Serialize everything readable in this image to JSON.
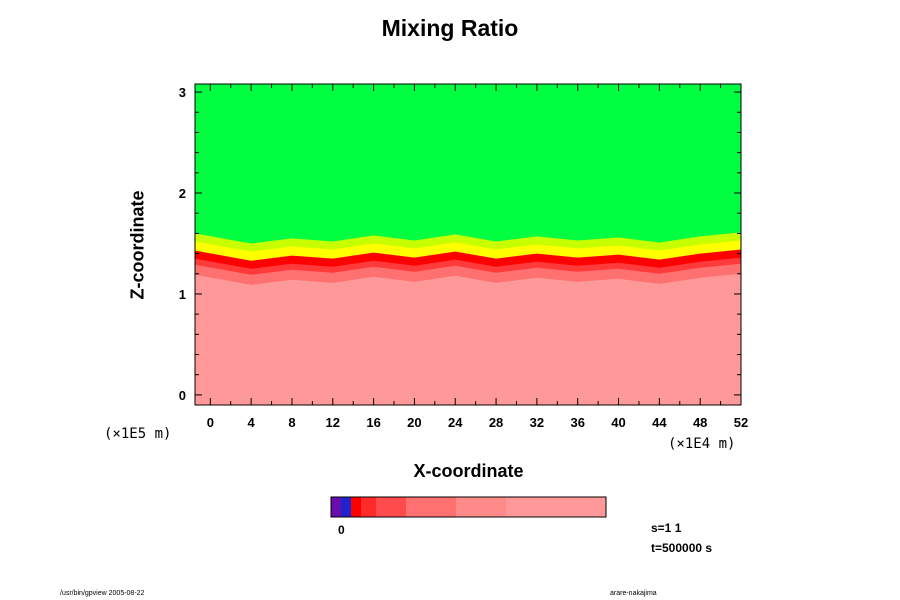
{
  "chart_data": {
    "type": "heatmap",
    "title": "Mixing Ratio",
    "xlabel": "X-coordinate",
    "ylabel": "Z-coordinate",
    "x_scale_label": "(×1E4 m)",
    "y_scale_label": "(×1E5 m)",
    "xlim": [
      -1.5,
      52
    ],
    "ylim": [
      -0.1,
      3.08
    ],
    "x_ticks": [
      "0",
      "4",
      "8",
      "12",
      "16",
      "20",
      "24",
      "28",
      "32",
      "36",
      "40",
      "44",
      "48",
      "52"
    ],
    "y_ticks": [
      "0",
      "1",
      "2",
      "3"
    ],
    "field": {
      "lower_region": {
        "z_range": [
          -0.1,
          1.05
        ],
        "color": "#ff9999"
      },
      "upper_region": {
        "z_range": [
          1.6,
          3.08
        ],
        "color": "#00ff40"
      },
      "transition_band_z": [
        1.05,
        1.6
      ],
      "band_colors": [
        "#ff7070",
        "#ff3a3a",
        "#ff0000",
        "#ffff00",
        "#c8ff00",
        "#00ff40"
      ],
      "interface_height_z": {
        "x": [
          -1.5,
          4,
          8,
          12,
          16,
          20,
          24,
          28,
          32,
          36,
          40,
          44,
          48,
          52
        ],
        "z": [
          1.25,
          1.15,
          1.2,
          1.17,
          1.23,
          1.18,
          1.24,
          1.17,
          1.22,
          1.18,
          1.21,
          1.16,
          1.22,
          1.26
        ]
      }
    },
    "colorbar": {
      "label": "0",
      "colors": [
        "#6a0dad",
        "#2222cc",
        "#ff0000",
        "#ff2a2a",
        "#ff4b4b",
        "#ff7070",
        "#ff8a8a",
        "#ff9999"
      ]
    },
    "grid": false
  },
  "info": {
    "s_text": "s=1 1",
    "t_text": "t=500000 s"
  },
  "footer": {
    "left": "/usr/bin/gpview 2005-08-22",
    "right": "arare-nakajima"
  }
}
